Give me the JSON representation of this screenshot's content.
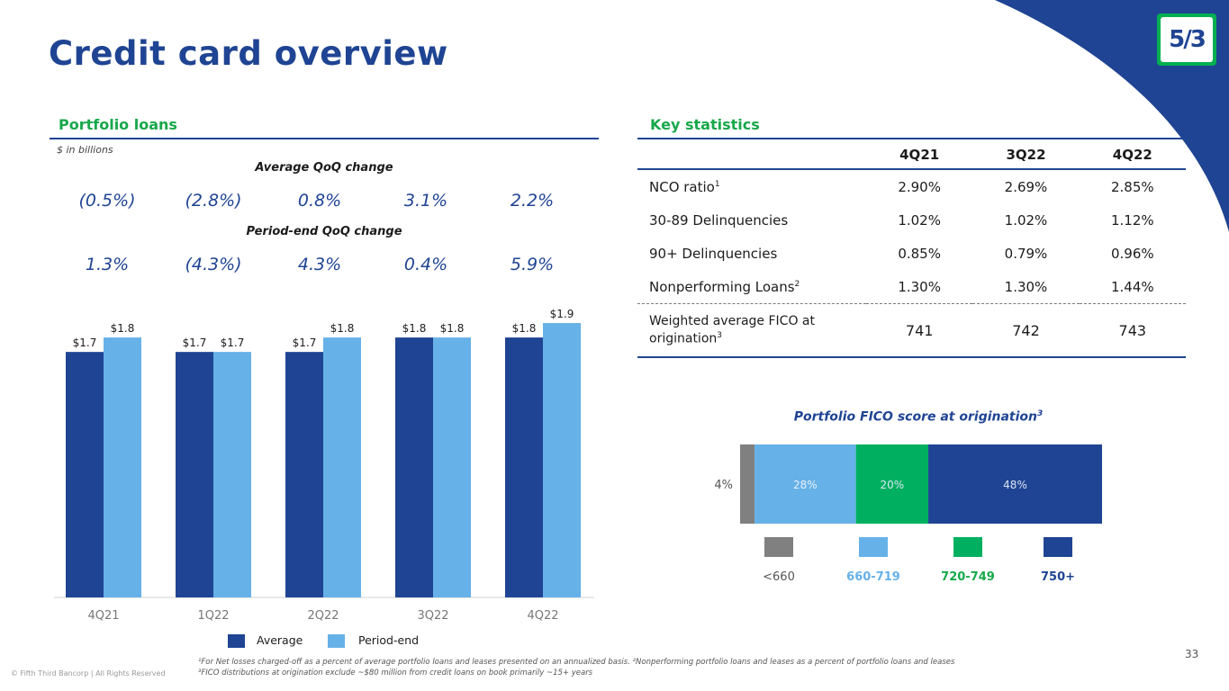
{
  "page": {
    "title": "Credit card overview",
    "page_number": "33",
    "copyright": "© Fifth Third Bancorp | All Rights Reserved",
    "logo_text": "5/3"
  },
  "colors": {
    "brand_blue": "#1f4493",
    "light_blue": "#66b1e8",
    "green": "#17a84a",
    "fico_green": "#00b060",
    "gray": "#808080"
  },
  "portfolio": {
    "heading": "Portfolio loans",
    "units": "$ in billions",
    "avg_qoq_heading": "Average QoQ change",
    "avg_qoq": [
      "(0.5%)",
      "(2.8%)",
      "0.8%",
      "3.1%",
      "2.2%"
    ],
    "pe_qoq_heading": "Period-end QoQ change",
    "pe_qoq": [
      "1.3%",
      "(4.3%)",
      "4.3%",
      "0.4%",
      "5.9%"
    ],
    "legend": {
      "average": "Average",
      "period_end": "Period-end"
    }
  },
  "key_stats": {
    "heading": "Key statistics",
    "columns": [
      "4Q21",
      "3Q22",
      "4Q22"
    ],
    "rows": [
      {
        "label": "NCO ratio",
        "sup": "1",
        "values": [
          "2.90%",
          "2.69%",
          "2.85%"
        ]
      },
      {
        "label": "30-89 Delinquencies",
        "sup": "",
        "values": [
          "1.02%",
          "1.02%",
          "1.12%"
        ]
      },
      {
        "label": "90+ Delinquencies",
        "sup": "",
        "values": [
          "0.85%",
          "0.79%",
          "0.96%"
        ]
      },
      {
        "label": "Nonperforming Loans",
        "sup": "2",
        "values": [
          "1.30%",
          "1.30%",
          "1.44%"
        ]
      }
    ],
    "fico_row": {
      "label_line1": "Weighted average FICO at",
      "label_line2": "origination",
      "sup": "3",
      "values": [
        "741",
        "742",
        "743"
      ]
    }
  },
  "chart_data": [
    {
      "type": "bar",
      "title": "Portfolio loans",
      "ylabel": "$ in billions",
      "categories": [
        "4Q21",
        "1Q22",
        "2Q22",
        "3Q22",
        "4Q22"
      ],
      "series": [
        {
          "name": "Average",
          "values": [
            1.7,
            1.7,
            1.7,
            1.8,
            1.8
          ],
          "labels": [
            "$1.7",
            "$1.7",
            "$1.7",
            "$1.8",
            "$1.8"
          ],
          "color": "#1f4493"
        },
        {
          "name": "Period-end",
          "values": [
            1.8,
            1.7,
            1.8,
            1.8,
            1.9
          ],
          "labels": [
            "$1.8",
            "$1.7",
            "$1.8",
            "$1.8",
            "$1.9"
          ],
          "color": "#66b1e8"
        }
      ],
      "ylim": [
        0,
        2
      ]
    },
    {
      "type": "bar",
      "orientation": "horizontal-stacked",
      "title": "Portfolio FICO score at origination",
      "title_sup": "3",
      "categories": [
        "<660",
        "660-719",
        "720-749",
        "750+"
      ],
      "values": [
        4,
        28,
        20,
        48
      ],
      "labels": [
        "4%",
        "28%",
        "20%",
        "48%"
      ],
      "colors": [
        "#808080",
        "#66b1e8",
        "#00b060",
        "#1f4493"
      ],
      "legend_text_colors": [
        "#555555",
        "#66b1e8",
        "#17a84a",
        "#1f4493"
      ]
    }
  ],
  "footnotes": {
    "line1": "¹For Net losses charged-off as a percent of average portfolio loans and leases presented on an annualized basis. ²Nonperforming portfolio loans and leases as a percent of portfolio loans and leases",
    "line2": "³FICO distributions at origination exclude ~$80 million from credit loans on book primarily ~15+ years"
  }
}
